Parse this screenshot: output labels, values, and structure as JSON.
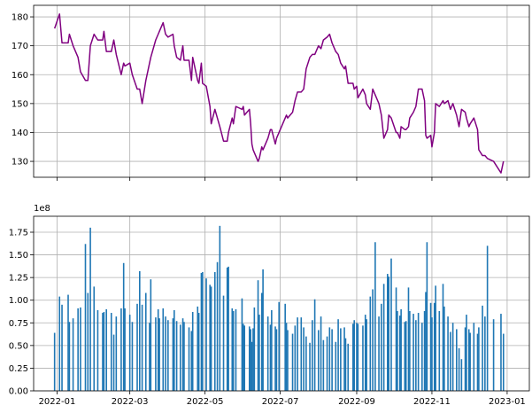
{
  "chart_data": [
    {
      "type": "line",
      "x": [
        "2021-12-30",
        "2022-01-03",
        "2022-01-05",
        "2022-01-10",
        "2022-01-11",
        "2022-01-14",
        "2022-01-18",
        "2022-01-20",
        "2022-01-24",
        "2022-01-26",
        "2022-01-28",
        "2022-01-31",
        "2022-02-03",
        "2022-02-07",
        "2022-02-08",
        "2022-02-10",
        "2022-02-14",
        "2022-02-16",
        "2022-02-18",
        "2022-02-22",
        "2022-02-24",
        "2022-02-25",
        "2022-03-01",
        "2022-03-03",
        "2022-03-07",
        "2022-03-09",
        "2022-03-11",
        "2022-03-14",
        "2022-03-17",
        "2022-03-18",
        "2022-03-22",
        "2022-03-24",
        "2022-03-25",
        "2022-03-28",
        "2022-03-30",
        "2022-04-01",
        "2022-04-05",
        "2022-04-06",
        "2022-04-08",
        "2022-04-11",
        "2022-04-13",
        "2022-04-14",
        "2022-04-18",
        "2022-04-20",
        "2022-04-21",
        "2022-04-25",
        "2022-04-26",
        "2022-04-28",
        "2022-04-29",
        "2022-05-02",
        "2022-05-05",
        "2022-05-06",
        "2022-05-09",
        "2022-05-11",
        "2022-05-13",
        "2022-05-16",
        "2022-05-19",
        "2022-05-20",
        "2022-05-23",
        "2022-05-24",
        "2022-05-26",
        "2022-05-31",
        "2022-06-01",
        "2022-06-02",
        "2022-06-06",
        "2022-06-07",
        "2022-06-08",
        "2022-06-09",
        "2022-06-10",
        "2022-06-13",
        "2022-06-14",
        "2022-06-16",
        "2022-06-17",
        "2022-06-21",
        "2022-06-23",
        "2022-06-24",
        "2022-06-27",
        "2022-06-28",
        "2022-06-30",
        "2022-07-05",
        "2022-07-06",
        "2022-07-07",
        "2022-07-11",
        "2022-07-13",
        "2022-07-15",
        "2022-07-18",
        "2022-07-20",
        "2022-07-22",
        "2022-07-25",
        "2022-07-27",
        "2022-07-29",
        "2022-08-01",
        "2022-08-03",
        "2022-08-05",
        "2022-08-08",
        "2022-08-10",
        "2022-08-12",
        "2022-08-15",
        "2022-08-17",
        "2022-08-19",
        "2022-08-22",
        "2022-08-23",
        "2022-08-25",
        "2022-08-29",
        "2022-08-30",
        "2022-09-01",
        "2022-09-02",
        "2022-09-06",
        "2022-09-08",
        "2022-09-09",
        "2022-09-12",
        "2022-09-14",
        "2022-09-16",
        "2022-09-19",
        "2022-09-21",
        "2022-09-23",
        "2022-09-26",
        "2022-09-27",
        "2022-09-29",
        "2022-10-03",
        "2022-10-04",
        "2022-10-06",
        "2022-10-07",
        "2022-10-10",
        "2022-10-11",
        "2022-10-13",
        "2022-10-14",
        "2022-10-17",
        "2022-10-19",
        "2022-10-21",
        "2022-10-24",
        "2022-10-26",
        "2022-10-27",
        "2022-10-28",
        "2022-10-31",
        "2022-11-01",
        "2022-11-03",
        "2022-11-04",
        "2022-11-07",
        "2022-11-10",
        "2022-11-11",
        "2022-11-14",
        "2022-11-16",
        "2022-11-18",
        "2022-11-21",
        "2022-11-23",
        "2022-11-25",
        "2022-11-28",
        "2022-11-29",
        "2022-12-01",
        "2022-12-02",
        "2022-12-05",
        "2022-12-08",
        "2022-12-09",
        "2022-12-12",
        "2022-12-14",
        "2022-12-16",
        "2022-12-21",
        "2022-12-27",
        "2022-12-29"
      ],
      "values": [
        176,
        181,
        171,
        171,
        174,
        170,
        166,
        161,
        158,
        158,
        170,
        174,
        172,
        172,
        175,
        168,
        168,
        172,
        167,
        160,
        164,
        163,
        164,
        160,
        155,
        155,
        150,
        158,
        164,
        166,
        172,
        174,
        175,
        178,
        174,
        173,
        174,
        170,
        166,
        165,
        170,
        165,
        165,
        158,
        166,
        158,
        157,
        164,
        157,
        156,
        149,
        143,
        148,
        145,
        142,
        137,
        137,
        140,
        145,
        143,
        149,
        148,
        149,
        146,
        148,
        143,
        136,
        134,
        133,
        130,
        131,
        135,
        134,
        138,
        141,
        141,
        136,
        138,
        140,
        145,
        146,
        145,
        147,
        151,
        154,
        154,
        155,
        162,
        166,
        167,
        167,
        170,
        169,
        172,
        173,
        174,
        171,
        168,
        167,
        164,
        162,
        163,
        157,
        157,
        155,
        156,
        152,
        155,
        153,
        150,
        148,
        155,
        153,
        150,
        146,
        138,
        141,
        146,
        145,
        140,
        140,
        138,
        142,
        141,
        141,
        142,
        145,
        147,
        149,
        155,
        155,
        151,
        139,
        138,
        139,
        135,
        140,
        150,
        149,
        151,
        150,
        151,
        148,
        150,
        146,
        142,
        148,
        147,
        145,
        142,
        143,
        145,
        141,
        134,
        132,
        132,
        131,
        130,
        126,
        130
      ],
      "color": "#800080",
      "xlim": [
        "2021-12-13",
        "2023-01-19"
      ],
      "xticks": [
        "2022-01-01",
        "2022-03-01",
        "2022-05-01",
        "2022-07-01",
        "2022-09-01",
        "2022-11-01",
        "2023-01-01"
      ],
      "ylim": [
        124.5,
        184
      ],
      "yticks": [
        130,
        140,
        150,
        160,
        170,
        180
      ],
      "grid": true
    },
    {
      "type": "bar",
      "x": [
        "2021-12-30",
        "2022-01-03",
        "2022-01-05",
        "2022-01-10",
        "2022-01-11",
        "2022-01-14",
        "2022-01-18",
        "2022-01-20",
        "2022-01-24",
        "2022-01-26",
        "2022-01-28",
        "2022-01-31",
        "2022-02-03",
        "2022-02-07",
        "2022-02-08",
        "2022-02-10",
        "2022-02-14",
        "2022-02-16",
        "2022-02-18",
        "2022-02-22",
        "2022-02-24",
        "2022-02-25",
        "2022-03-01",
        "2022-03-03",
        "2022-03-07",
        "2022-03-09",
        "2022-03-11",
        "2022-03-14",
        "2022-03-17",
        "2022-03-18",
        "2022-03-22",
        "2022-03-24",
        "2022-03-25",
        "2022-03-28",
        "2022-03-30",
        "2022-04-01",
        "2022-04-05",
        "2022-04-06",
        "2022-04-08",
        "2022-04-11",
        "2022-04-13",
        "2022-04-14",
        "2022-04-18",
        "2022-04-20",
        "2022-04-21",
        "2022-04-25",
        "2022-04-26",
        "2022-04-28",
        "2022-04-29",
        "2022-05-02",
        "2022-05-05",
        "2022-05-06",
        "2022-05-09",
        "2022-05-11",
        "2022-05-13",
        "2022-05-16",
        "2022-05-19",
        "2022-05-20",
        "2022-05-23",
        "2022-05-24",
        "2022-05-26",
        "2022-05-31",
        "2022-06-01",
        "2022-06-02",
        "2022-06-06",
        "2022-06-07",
        "2022-06-08",
        "2022-06-09",
        "2022-06-10",
        "2022-06-13",
        "2022-06-14",
        "2022-06-16",
        "2022-06-17",
        "2022-06-21",
        "2022-06-23",
        "2022-06-24",
        "2022-06-27",
        "2022-06-28",
        "2022-06-30",
        "2022-07-05",
        "2022-07-06",
        "2022-07-07",
        "2022-07-11",
        "2022-07-13",
        "2022-07-15",
        "2022-07-18",
        "2022-07-20",
        "2022-07-22",
        "2022-07-25",
        "2022-07-27",
        "2022-07-29",
        "2022-08-01",
        "2022-08-03",
        "2022-08-05",
        "2022-08-08",
        "2022-08-10",
        "2022-08-12",
        "2022-08-15",
        "2022-08-17",
        "2022-08-19",
        "2022-08-22",
        "2022-08-23",
        "2022-08-25",
        "2022-08-29",
        "2022-08-30",
        "2022-09-01",
        "2022-09-02",
        "2022-09-06",
        "2022-09-08",
        "2022-09-09",
        "2022-09-12",
        "2022-09-14",
        "2022-09-16",
        "2022-09-19",
        "2022-09-21",
        "2022-09-23",
        "2022-09-26",
        "2022-09-27",
        "2022-09-29",
        "2022-10-03",
        "2022-10-04",
        "2022-10-06",
        "2022-10-07",
        "2022-10-10",
        "2022-10-11",
        "2022-10-13",
        "2022-10-14",
        "2022-10-17",
        "2022-10-19",
        "2022-10-21",
        "2022-10-24",
        "2022-10-26",
        "2022-10-27",
        "2022-10-28",
        "2022-10-31",
        "2022-11-01",
        "2022-11-03",
        "2022-11-04",
        "2022-11-07",
        "2022-11-10",
        "2022-11-11",
        "2022-11-14",
        "2022-11-16",
        "2022-11-18",
        "2022-11-21",
        "2022-11-23",
        "2022-11-25",
        "2022-11-28",
        "2022-11-29",
        "2022-12-01",
        "2022-12-02",
        "2022-12-05",
        "2022-12-08",
        "2022-12-09",
        "2022-12-12",
        "2022-12-14",
        "2022-12-16",
        "2022-12-21",
        "2022-12-27",
        "2022-12-29"
      ],
      "values": [
        0.64,
        1.04,
        0.95,
        1.06,
        0.76,
        0.8,
        0.91,
        0.92,
        1.62,
        1.08,
        1.8,
        1.15,
        0.89,
        0.86,
        0.87,
        0.9,
        0.86,
        0.62,
        0.82,
        0.91,
        1.41,
        0.91,
        0.84,
        0.76,
        0.96,
        1.32,
        0.95,
        1.08,
        0.75,
        1.23,
        0.81,
        0.9,
        0.8,
        0.91,
        0.82,
        0.78,
        0.8,
        0.89,
        0.77,
        0.73,
        0.8,
        0.76,
        0.7,
        0.66,
        0.87,
        0.93,
        0.86,
        1.3,
        1.31,
        1.24,
        1.17,
        1.15,
        1.31,
        1.42,
        1.82,
        1.05,
        1.36,
        1.37,
        0.91,
        0.88,
        0.9,
        1.02,
        0.74,
        0.72,
        0.71,
        0.68,
        0.54,
        0.69,
        0.92,
        1.22,
        0.84,
        1.08,
        1.34,
        0.82,
        0.73,
        0.89,
        0.71,
        0.68,
        0.98,
        0.96,
        0.75,
        0.67,
        0.63,
        0.72,
        0.81,
        0.81,
        0.7,
        0.6,
        0.53,
        0.78,
        1.01,
        0.67,
        0.82,
        0.56,
        0.6,
        0.7,
        0.68,
        0.54,
        0.79,
        0.69,
        0.7,
        0.58,
        0.52,
        0.74,
        0.78,
        0.75,
        0.74,
        0.72,
        0.84,
        0.79,
        1.04,
        1.12,
        1.64,
        0.82,
        0.96,
        1.18,
        1.29,
        1.26,
        1.46,
        1.14,
        0.88,
        0.83,
        0.9,
        0.76,
        0.77,
        1.14,
        0.88,
        0.85,
        0.78,
        0.86,
        0.75,
        0.88,
        1.09,
        1.64,
        0.97,
        0.81,
        0.97,
        1.16,
        0.88,
        1.18,
        0.93,
        0.82,
        0.65,
        0.75,
        0.68,
        0.47,
        0.35,
        0.7,
        0.84,
        0.68,
        0.64,
        0.75,
        0.63,
        0.7,
        0.94,
        0.82,
        1.6,
        0.79,
        0.85,
        0.63
      ],
      "color": "#1f77b4",
      "offset_label": "1e8",
      "xlim": [
        "2021-12-13",
        "2023-01-19"
      ],
      "xticks": [
        {
          "value": "2022-01-01",
          "label": "2022-01"
        },
        {
          "value": "2022-03-01",
          "label": "2022-03"
        },
        {
          "value": "2022-05-01",
          "label": "2022-05"
        },
        {
          "value": "2022-07-01",
          "label": "2022-07"
        },
        {
          "value": "2022-09-01",
          "label": "2022-09"
        },
        {
          "value": "2022-11-01",
          "label": "2022-11"
        },
        {
          "value": "2023-01-01",
          "label": "2023-01"
        }
      ],
      "ylim": [
        0,
        1.926
      ],
      "yticks": [
        {
          "value": 0,
          "label": "0.00"
        },
        {
          "value": 0.25,
          "label": "0.25"
        },
        {
          "value": 0.5,
          "label": "0.50"
        },
        {
          "value": 0.75,
          "label": "0.75"
        },
        {
          "value": 1,
          "label": "1.00"
        },
        {
          "value": 1.25,
          "label": "1.25"
        },
        {
          "value": 1.5,
          "label": "1.50"
        },
        {
          "value": 1.75,
          "label": "1.75"
        }
      ],
      "grid": true
    }
  ]
}
